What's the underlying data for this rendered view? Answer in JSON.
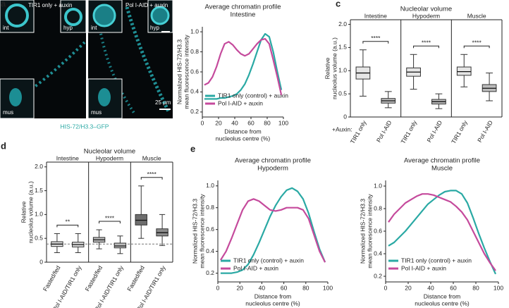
{
  "panel_a": {
    "letter": "a",
    "left_title": "TIR1 only + auxin",
    "right_title": "Pol I-AID + auxin",
    "left_insets": [
      "int",
      "hyp",
      "mus"
    ],
    "right_insets": [
      "int",
      "hyp",
      "mus"
    ],
    "scale_bar": "25 µm",
    "caption": "HIS-72/H3.3–GFP"
  },
  "chart_data": [
    {
      "type": "line",
      "panel": "b",
      "title": "Average chromatin profile",
      "subtitle": "Intestine",
      "ylabel": [
        "Normalized HIS-72/H3.3",
        "mean fluorescence intensity"
      ],
      "xlabel": [
        "Distance from",
        "nucleolus centre (%)"
      ],
      "x": [
        2.5,
        7.5,
        12.5,
        17.5,
        22.5,
        27.5,
        32.5,
        37.5,
        42.5,
        47.5,
        52.5,
        57.5,
        62.5,
        67.5,
        72.5,
        77.5,
        82.5,
        87.5,
        92.5,
        97.5
      ],
      "xlim": [
        0,
        100
      ],
      "xticks": [
        0,
        20,
        40,
        60,
        80,
        100
      ],
      "ylim": [
        0.15,
        1.05
      ],
      "yticks": [
        0.2,
        0.4,
        0.6,
        0.8,
        {
          "value": 1,
          "label": "1.0"
        }
      ],
      "legend": "lower left",
      "series": [
        {
          "name": "TIR1 only (control) + auxin",
          "color": "#2aa9a4",
          "values": [
            0.33,
            0.33,
            0.33,
            0.33,
            0.34,
            0.34,
            0.35,
            0.36,
            0.38,
            0.42,
            0.48,
            0.57,
            0.68,
            0.8,
            0.92,
            0.98,
            0.95,
            0.8,
            0.6,
            0.42
          ]
        },
        {
          "name": "Pol I-AID + auxin",
          "color": "#c54a9c",
          "values": [
            0.47,
            0.49,
            0.55,
            0.65,
            0.78,
            0.88,
            0.9,
            0.87,
            0.82,
            0.78,
            0.76,
            0.78,
            0.83,
            0.88,
            0.92,
            0.93,
            0.88,
            0.72,
            0.55,
            0.37
          ]
        }
      ]
    },
    {
      "type": "box",
      "panel": "c",
      "title": "Nucleolar volume",
      "ylabel": [
        "Relative",
        "nucleolus volume (a.u.)"
      ],
      "groups": [
        "Intestine",
        "Hypoderm",
        "Muscle"
      ],
      "x_caption": "+Auxin:",
      "categories": [
        "TIR1 only",
        "Pol I-AID",
        "TIR1 only",
        "Pol I-AID",
        "TIR1 only",
        "Pol I-AID"
      ],
      "significance": [
        "****",
        "****",
        "****"
      ],
      "ylim": [
        0,
        2.1
      ],
      "yticks": [
        0,
        0.5,
        {
          "value": 1,
          "label": "1.0"
        },
        1.5,
        {
          "value": 2,
          "label": "2.0"
        }
      ],
      "colors": [
        "#e6e6e6",
        "#bdbdbd",
        "#e6e6e6",
        "#bdbdbd",
        "#e6e6e6",
        "#bdbdbd"
      ],
      "boxes": [
        {
          "whislo": 0.45,
          "q1": 0.82,
          "med": 0.95,
          "q3": 1.08,
          "whishi": 1.45
        },
        {
          "whislo": 0.2,
          "q1": 0.3,
          "med": 0.35,
          "q3": 0.4,
          "whishi": 0.55
        },
        {
          "whislo": 0.6,
          "q1": 0.88,
          "med": 0.97,
          "q3": 1.06,
          "whishi": 1.35
        },
        {
          "whislo": 0.18,
          "q1": 0.28,
          "med": 0.33,
          "q3": 0.38,
          "whishi": 0.5
        },
        {
          "whislo": 0.65,
          "q1": 0.9,
          "med": 0.98,
          "q3": 1.08,
          "whishi": 1.35
        },
        {
          "whislo": 0.35,
          "q1": 0.55,
          "med": 0.62,
          "q3": 0.7,
          "whishi": 0.95
        }
      ]
    },
    {
      "type": "box",
      "panel": "d",
      "title": "Nucleolar volume",
      "ylabel": [
        "Relative",
        "nucleolus volume (a.u.)"
      ],
      "groups": [
        "Intestine",
        "Hypoderm",
        "Muscle"
      ],
      "categories": [
        "Fasted/fed",
        "Pol I-AID/TIR1 only",
        "Fasted/fed",
        "Pol I-AID/TIR1 only",
        "Fasted/fed",
        "Pol I-AID/TIR1 only"
      ],
      "significance": [
        "**",
        "****",
        "****"
      ],
      "hline": 0.38,
      "ylim": [
        0,
        2.1
      ],
      "yticks": [
        0,
        0.5,
        {
          "value": 1,
          "label": "1.0"
        },
        1.5,
        {
          "value": 2,
          "label": "2.0"
        }
      ],
      "colors": [
        "#dcdcdc",
        "#dcdcdc",
        "#bcbcbc",
        "#bcbcbc",
        "#6e6e6e",
        "#8c8c8c"
      ],
      "boxes": [
        {
          "whislo": 0.2,
          "q1": 0.33,
          "med": 0.38,
          "q3": 0.43,
          "whishi": 0.6
        },
        {
          "whislo": 0.2,
          "q1": 0.32,
          "med": 0.37,
          "q3": 0.42,
          "whishi": 0.6
        },
        {
          "whislo": 0.28,
          "q1": 0.42,
          "med": 0.47,
          "q3": 0.52,
          "whishi": 0.68
        },
        {
          "whislo": 0.18,
          "q1": 0.3,
          "med": 0.34,
          "q3": 0.4,
          "whishi": 0.55
        },
        {
          "whislo": 0.5,
          "q1": 0.78,
          "med": 0.88,
          "q3": 1.0,
          "whishi": 1.6
        },
        {
          "whislo": 0.35,
          "q1": 0.55,
          "med": 0.62,
          "q3": 0.7,
          "whishi": 1.0
        }
      ]
    },
    {
      "type": "line",
      "panel": "e",
      "title": "Average chromatin profile",
      "subtitle": "Hypoderm",
      "ylabel": [
        "Normalized HIS-72/H3.3",
        "mean fluorescence intensity"
      ],
      "xlabel": [
        "Distance from",
        "nucleolus centre (%)"
      ],
      "x": [
        2.5,
        7.5,
        12.5,
        17.5,
        22.5,
        27.5,
        32.5,
        37.5,
        42.5,
        47.5,
        52.5,
        57.5,
        62.5,
        67.5,
        72.5,
        77.5,
        82.5,
        87.5,
        92.5,
        97.5
      ],
      "xlim": [
        0,
        100
      ],
      "xticks": [
        0,
        20,
        40,
        60,
        80,
        100
      ],
      "ylim": [
        0.12,
        1.05
      ],
      "yticks": [
        0.2,
        0.4,
        0.6,
        0.8,
        {
          "value": 1,
          "label": "1.0"
        }
      ],
      "legend": "lower left",
      "series": [
        {
          "name": "TIR1 only (control) + auxin",
          "color": "#2aa9a4",
          "values": [
            0.2,
            0.2,
            0.2,
            0.21,
            0.23,
            0.28,
            0.37,
            0.48,
            0.6,
            0.72,
            0.82,
            0.9,
            0.96,
            0.98,
            0.95,
            0.88,
            0.75,
            0.58,
            0.42,
            0.3
          ]
        },
        {
          "name": "Pol I-AID + auxin",
          "color": "#c54a9c",
          "values": [
            0.32,
            0.4,
            0.52,
            0.65,
            0.78,
            0.86,
            0.88,
            0.86,
            0.82,
            0.78,
            0.77,
            0.78,
            0.8,
            0.8,
            0.8,
            0.78,
            0.7,
            0.55,
            0.4,
            0.3
          ]
        }
      ]
    },
    {
      "type": "line",
      "title": "Average chromatin profile",
      "subtitle": "Muscle",
      "ylabel": [
        "Normalized HIS-72/H3.3",
        "mean fluorescence intensity"
      ],
      "xlabel": [
        "Distance from",
        "nucleolus centre (%)"
      ],
      "x": [
        2.5,
        7.5,
        12.5,
        17.5,
        22.5,
        27.5,
        32.5,
        37.5,
        42.5,
        47.5,
        52.5,
        57.5,
        62.5,
        67.5,
        72.5,
        77.5,
        82.5,
        87.5,
        92.5,
        97.5
      ],
      "xlim": [
        0,
        100
      ],
      "xticks": [
        0,
        20,
        40,
        60,
        80,
        100
      ],
      "ylim": [
        0.15,
        1.05
      ],
      "yticks": [
        0.2,
        0.4,
        0.6,
        0.8,
        {
          "value": 1,
          "label": "1.0"
        }
      ],
      "legend": "lower left",
      "series": [
        {
          "name": "TIR1 only (control) + auxin",
          "color": "#2aa9a4",
          "values": [
            0.47,
            0.5,
            0.55,
            0.6,
            0.66,
            0.72,
            0.78,
            0.84,
            0.88,
            0.92,
            0.95,
            0.96,
            0.96,
            0.93,
            0.85,
            0.72,
            0.58,
            0.45,
            0.33,
            0.22
          ]
        },
        {
          "name": "Pol I-AID + auxin",
          "color": "#c54a9c",
          "values": [
            0.68,
            0.75,
            0.8,
            0.85,
            0.88,
            0.91,
            0.93,
            0.93,
            0.92,
            0.9,
            0.88,
            0.86,
            0.82,
            0.77,
            0.7,
            0.6,
            0.5,
            0.4,
            0.32,
            0.25
          ]
        }
      ]
    }
  ]
}
